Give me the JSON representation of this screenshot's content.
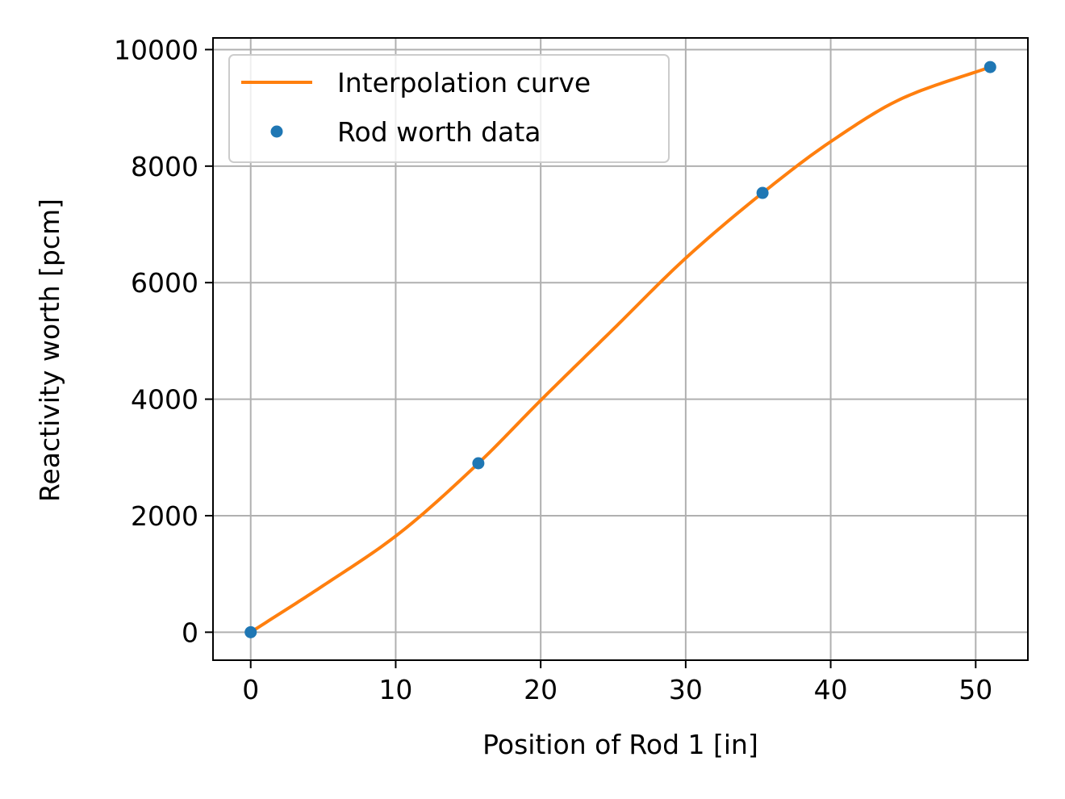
{
  "chart_data": {
    "type": "line",
    "xlabel": "Position of Rod 1 [in]",
    "ylabel": "Reactivity worth [pcm]",
    "xlim": [
      -2.6,
      53.6
    ],
    "ylim": [
      -480,
      10200
    ],
    "xticks": [
      0,
      10,
      20,
      30,
      40,
      50
    ],
    "yticks": [
      0,
      2000,
      4000,
      6000,
      8000,
      10000
    ],
    "grid": true,
    "legend_position": "upper-left",
    "series": [
      {
        "name": "Interpolation curve",
        "style": "line",
        "color": "#ff7f0e",
        "x": [
          0,
          5,
          10,
          15.7,
          20,
          25,
          30,
          35.3,
          40,
          45,
          51
        ],
        "y": [
          0,
          800,
          1650,
          2900,
          3980,
          5200,
          6420,
          7540,
          8420,
          9170,
          9700
        ]
      },
      {
        "name": "Rod worth data",
        "style": "markers",
        "color": "#1f77b4",
        "x": [
          0,
          15.7,
          35.3,
          51
        ],
        "y": [
          0,
          2900,
          7540,
          9700
        ]
      }
    ]
  }
}
